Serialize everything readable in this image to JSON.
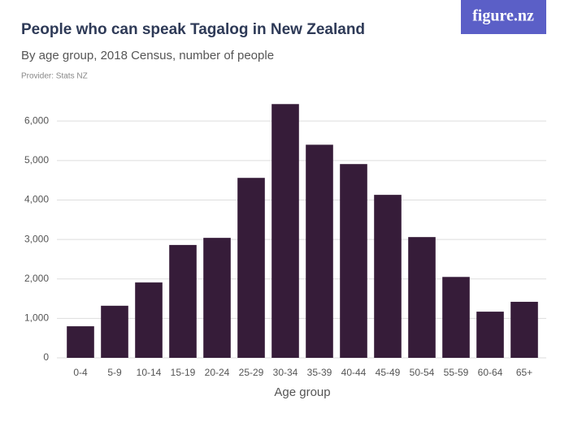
{
  "brand": "figure.nz",
  "chart_data": {
    "type": "bar",
    "title": "People who can speak Tagalog in New Zealand",
    "subtitle": "By age group, 2018 Census, number of people",
    "provider": "Provider: Stats NZ",
    "x_label": "Age group",
    "categories": [
      "0-4",
      "5-9",
      "10-14",
      "15-19",
      "20-24",
      "25-29",
      "30-34",
      "35-39",
      "40-44",
      "45-49",
      "50-54",
      "55-59",
      "60-64",
      "65+"
    ],
    "values": [
      800,
      1320,
      1910,
      2860,
      3040,
      4560,
      6430,
      5400,
      4910,
      4130,
      3060,
      2050,
      1170,
      1420
    ],
    "color": "#361c39",
    "ylim": [
      0,
      6600
    ],
    "yticks": [
      0,
      {
        "value": 1000,
        "label": "1,000"
      },
      {
        "value": 2000,
        "label": "2,000"
      },
      {
        "value": 3000,
        "label": "3,000"
      },
      {
        "value": 4000,
        "label": "4,000"
      },
      {
        "value": 5000,
        "label": "5,000"
      },
      {
        "value": 6000,
        "label": "6,000"
      }
    ],
    "grid": true
  }
}
